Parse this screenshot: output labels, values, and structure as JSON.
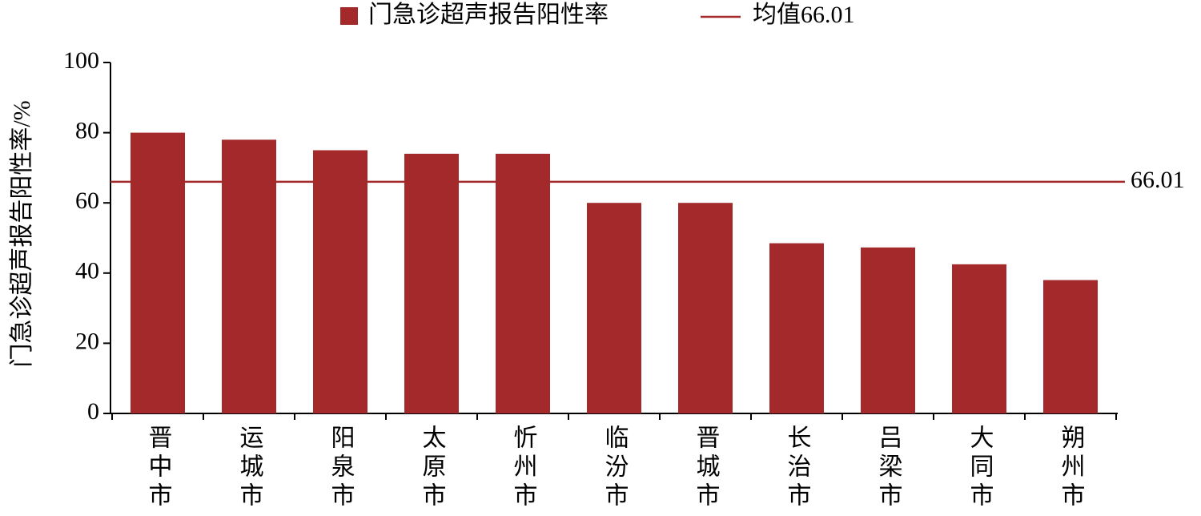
{
  "chart_data": {
    "type": "bar",
    "y_label": "门急诊超声报告阳性率/%",
    "categories": [
      "晋中市",
      "运城市",
      "阳泉市",
      "太原市",
      "忻州市",
      "临汾市",
      "晋城市",
      "长治市",
      "吕梁市",
      "大同市",
      "朔州市"
    ],
    "series": [
      {
        "name": "门急诊超声报告阳性率",
        "color": "#a3292a",
        "values": [
          80,
          78,
          75,
          74,
          74,
          60,
          60,
          48.5,
          47.3,
          42.5,
          38
        ]
      }
    ],
    "mean": {
      "name": "均值66.01",
      "value": 66.01,
      "color": "#a3292a"
    },
    "ylim": [
      0,
      100
    ],
    "yticks": [
      0,
      20,
      40,
      60,
      80,
      100
    ]
  }
}
